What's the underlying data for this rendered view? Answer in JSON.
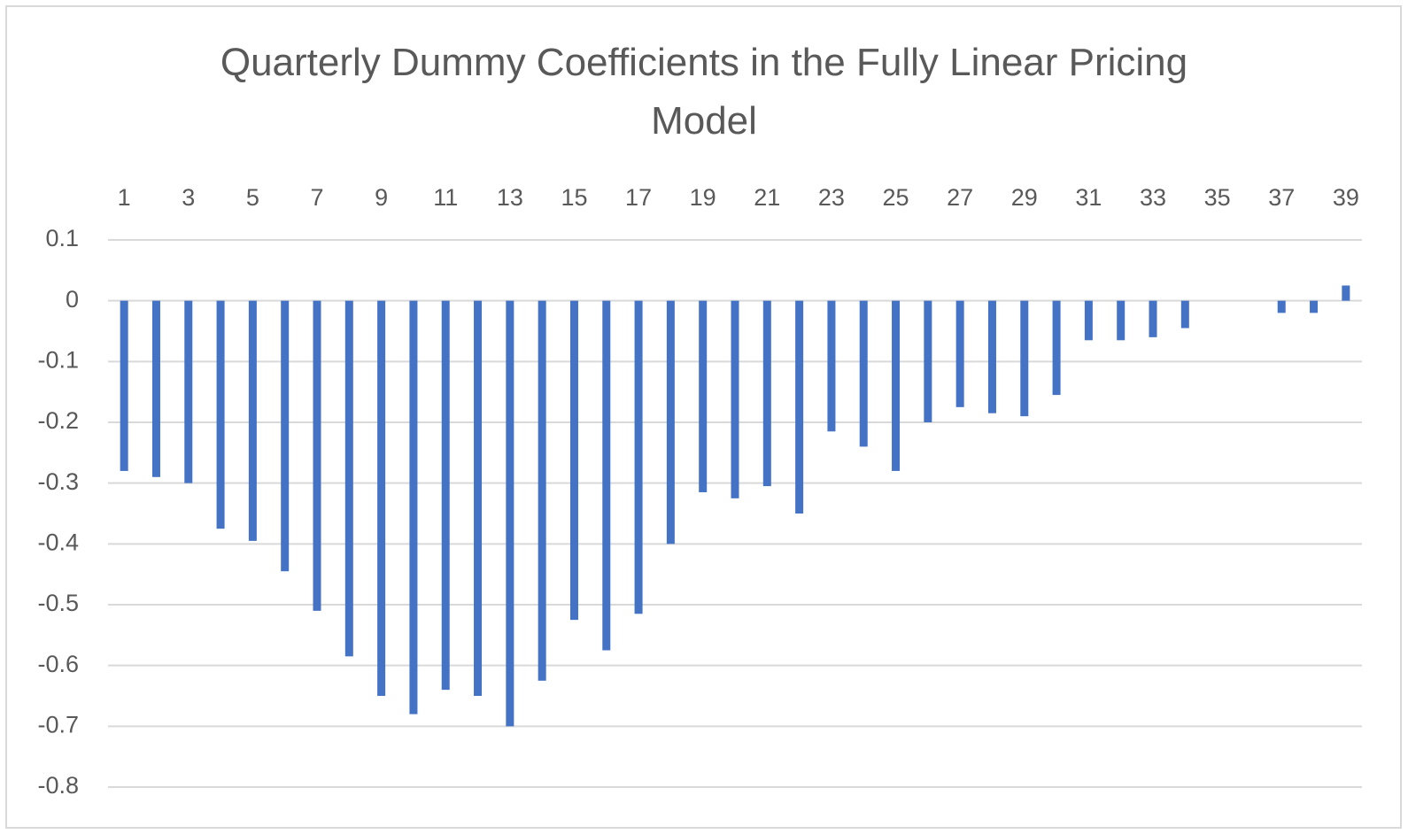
{
  "chart_data": {
    "type": "bar",
    "title": "Quarterly Dummy Coefficients in the Fully Linear Pricing Model",
    "categories": [
      1,
      null,
      3,
      null,
      5,
      null,
      7,
      null,
      9,
      null,
      11,
      null,
      13,
      null,
      15,
      null,
      17,
      null,
      19,
      null,
      21,
      null,
      23,
      null,
      25,
      null,
      27,
      null,
      29,
      null,
      31,
      null,
      33,
      null,
      35,
      null,
      37,
      null,
      39
    ],
    "values": [
      -0.28,
      -0.29,
      -0.3,
      -0.375,
      -0.395,
      -0.445,
      -0.51,
      -0.585,
      -0.65,
      -0.68,
      -0.64,
      -0.65,
      -0.7,
      -0.625,
      -0.525,
      -0.575,
      -0.515,
      -0.4,
      -0.315,
      -0.325,
      -0.305,
      -0.35,
      -0.215,
      -0.24,
      -0.28,
      -0.2,
      -0.175,
      -0.185,
      -0.19,
      -0.155,
      -0.065,
      -0.065,
      -0.06,
      -0.045,
      null,
      null,
      -0.02,
      -0.02,
      0.025
    ],
    "color": "#4472c4",
    "ylim": [
      -0.8,
      0.1
    ],
    "yticks": [
      0.1,
      0,
      -0.1,
      -0.2,
      -0.3,
      -0.4,
      -0.5,
      -0.6,
      -0.7,
      -0.8
    ],
    "grid": true,
    "x_axis_position": "top"
  }
}
